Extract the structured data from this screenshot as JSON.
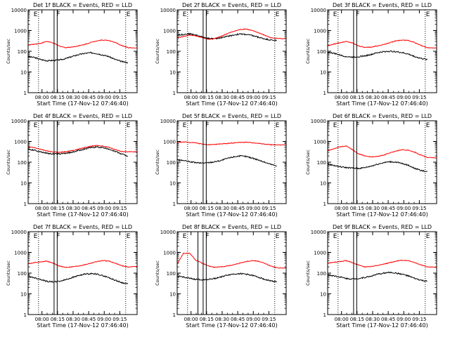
{
  "figure": {
    "xlabel": "Start Time (17-Nov-12 07:46:40)",
    "ylabel": "Counts/sec",
    "x_tick_labels": [
      "08:00",
      "08:15",
      "08:30",
      "08:45",
      "09:00",
      "09:15"
    ],
    "y_tick_labels": [
      "1",
      "10",
      "100",
      "1000",
      "10000"
    ],
    "flag_label_F": "F",
    "flag_label_E": "E",
    "colors": {
      "events": "#000000",
      "lld": "#ff0000",
      "axes": "#000000",
      "background": "#ffffff"
    }
  },
  "chart_data": [
    {
      "type": "line",
      "title": "Det 1f BLACK = Events, RED = LLD",
      "yscale": "log",
      "ylim": [
        1,
        10000
      ],
      "x_range_minutes": [
        0,
        105
      ],
      "series": [
        {
          "color": "#000000",
          "x": [
            0,
            6,
            12,
            18,
            24,
            30,
            36,
            42,
            48,
            54,
            60,
            66,
            72,
            78,
            84,
            90,
            96
          ],
          "y": [
            55,
            50,
            40,
            35,
            36,
            38,
            44,
            55,
            68,
            78,
            85,
            78,
            66,
            55,
            40,
            32,
            28
          ]
        },
        {
          "color": "#ff0000",
          "x": [
            0,
            6,
            12,
            18,
            24,
            30,
            36,
            42,
            48,
            54,
            60,
            66,
            72,
            78,
            84,
            90,
            96,
            105
          ],
          "y": [
            200,
            220,
            240,
            300,
            250,
            180,
            150,
            160,
            180,
            210,
            260,
            320,
            350,
            330,
            260,
            190,
            150,
            145
          ]
        }
      ],
      "vlines_solid": [
        25,
        28
      ],
      "vlines_dotted": [
        10,
        94
      ],
      "flags": {
        "F": 28,
        "E": 94
      }
    },
    {
      "type": "line",
      "title": "Det 2f BLACK = Events, RED = LLD",
      "yscale": "log",
      "ylim": [
        1,
        10000
      ],
      "x_range_minutes": [
        0,
        105
      ],
      "series": [
        {
          "color": "#000000",
          "x": [
            0,
            6,
            12,
            18,
            24,
            30,
            36,
            42,
            48,
            54,
            60,
            66,
            72,
            78,
            84,
            90,
            96
          ],
          "y": [
            600,
            650,
            700,
            600,
            500,
            420,
            400,
            450,
            520,
            600,
            680,
            650,
            580,
            480,
            400,
            350,
            330
          ]
        },
        {
          "color": "#ff0000",
          "x": [
            0,
            6,
            12,
            18,
            24,
            30,
            36,
            42,
            48,
            54,
            60,
            66,
            72,
            78,
            84,
            90,
            96,
            105
          ],
          "y": [
            450,
            520,
            600,
            560,
            450,
            380,
            400,
            520,
            700,
            900,
            1100,
            1200,
            1000,
            800,
            600,
            450,
            420,
            400
          ]
        }
      ],
      "vlines_solid": [
        25,
        28
      ],
      "vlines_dotted": [
        10,
        94
      ],
      "flags": {
        "F": 28,
        "E": 94
      }
    },
    {
      "type": "line",
      "title": "Det 3f BLACK = Events, RED = LLD",
      "yscale": "log",
      "ylim": [
        1,
        10000
      ],
      "x_range_minutes": [
        0,
        105
      ],
      "series": [
        {
          "color": "#000000",
          "x": [
            0,
            6,
            12,
            18,
            24,
            30,
            36,
            42,
            48,
            54,
            60,
            66,
            72,
            78,
            84,
            90,
            96
          ],
          "y": [
            90,
            80,
            65,
            55,
            52,
            55,
            60,
            70,
            85,
            95,
            100,
            95,
            85,
            72,
            55,
            45,
            40
          ]
        },
        {
          "color": "#ff0000",
          "x": [
            0,
            6,
            12,
            18,
            24,
            30,
            36,
            42,
            48,
            54,
            60,
            66,
            72,
            78,
            84,
            90,
            96,
            105
          ],
          "y": [
            180,
            220,
            260,
            300,
            250,
            180,
            150,
            160,
            180,
            210,
            260,
            320,
            350,
            330,
            260,
            190,
            150,
            145
          ]
        }
      ],
      "vlines_solid": [
        25,
        28
      ],
      "vlines_dotted": [
        10,
        94
      ],
      "flags": {
        "F": 28,
        "E": 94
      }
    },
    {
      "type": "line",
      "title": "Det 4f BLACK = Events, RED = LLD",
      "yscale": "log",
      "ylim": [
        1,
        10000
      ],
      "x_range_minutes": [
        0,
        105
      ],
      "series": [
        {
          "color": "#000000",
          "x": [
            0,
            6,
            12,
            18,
            24,
            30,
            36,
            42,
            48,
            54,
            60,
            66,
            72,
            78,
            84,
            90,
            96
          ],
          "y": [
            420,
            380,
            320,
            270,
            250,
            250,
            270,
            300,
            360,
            430,
            500,
            540,
            500,
            430,
            330,
            250,
            200
          ]
        },
        {
          "color": "#ff0000",
          "x": [
            0,
            6,
            12,
            18,
            24,
            30,
            36,
            42,
            48,
            54,
            60,
            66,
            72,
            78,
            84,
            90,
            96,
            105
          ],
          "y": [
            550,
            500,
            420,
            350,
            310,
            300,
            320,
            360,
            420,
            500,
            580,
            640,
            600,
            520,
            400,
            330,
            320,
            320
          ]
        }
      ],
      "vlines_solid": [
        25,
        28
      ],
      "vlines_dotted": [
        10,
        94
      ],
      "flags": {
        "F": 28,
        "E": 94
      }
    },
    {
      "type": "line",
      "title": "Det 5f BLACK = Events, RED = LLD",
      "yscale": "log",
      "ylim": [
        1,
        10000
      ],
      "x_range_minutes": [
        0,
        105
      ],
      "series": [
        {
          "color": "#000000",
          "x": [
            0,
            6,
            12,
            18,
            24,
            30,
            36,
            42,
            48,
            54,
            60,
            66,
            72,
            78,
            84,
            90,
            96
          ],
          "y": [
            130,
            120,
            105,
            95,
            90,
            95,
            105,
            120,
            150,
            180,
            200,
            190,
            160,
            130,
            100,
            80,
            65
          ]
        },
        {
          "color": "#ff0000",
          "x": [
            0,
            6,
            12,
            18,
            24,
            30,
            36,
            42,
            48,
            54,
            60,
            66,
            72,
            78,
            84,
            90,
            96,
            105
          ],
          "y": [
            900,
            950,
            900,
            850,
            750,
            700,
            720,
            760,
            800,
            850,
            900,
            920,
            880,
            820,
            750,
            700,
            680,
            680
          ]
        }
      ],
      "vlines_solid": [
        25,
        28
      ],
      "vlines_dotted": [
        10,
        94
      ],
      "flags": {
        "F": 28,
        "E": 94
      }
    },
    {
      "type": "line",
      "title": "Det 6f BLACK = Events, RED = LLD",
      "yscale": "log",
      "ylim": [
        1,
        10000
      ],
      "x_range_minutes": [
        0,
        105
      ],
      "series": [
        {
          "color": "#000000",
          "x": [
            0,
            6,
            12,
            18,
            24,
            30,
            36,
            42,
            48,
            54,
            60,
            66,
            72,
            78,
            84,
            90,
            96
          ],
          "y": [
            80,
            70,
            60,
            55,
            52,
            50,
            55,
            65,
            80,
            95,
            105,
            100,
            85,
            70,
            50,
            40,
            35
          ]
        },
        {
          "color": "#ff0000",
          "x": [
            0,
            6,
            12,
            18,
            24,
            30,
            36,
            42,
            48,
            54,
            60,
            66,
            72,
            78,
            84,
            90,
            96,
            105
          ],
          "y": [
            350,
            450,
            550,
            600,
            400,
            250,
            200,
            180,
            190,
            220,
            280,
            350,
            400,
            380,
            300,
            220,
            170,
            160
          ]
        }
      ],
      "vlines_solid": [
        25,
        28
      ],
      "vlines_dotted": [
        10,
        94
      ],
      "flags": {
        "F": 28,
        "E": 94
      }
    },
    {
      "type": "line",
      "title": "Det 7f BLACK = Events, RED = LLD",
      "yscale": "log",
      "ylim": [
        1,
        10000
      ],
      "x_range_minutes": [
        0,
        105
      ],
      "series": [
        {
          "color": "#000000",
          "x": [
            0,
            6,
            12,
            18,
            24,
            30,
            36,
            42,
            48,
            54,
            60,
            66,
            72,
            78,
            84,
            90,
            96
          ],
          "y": [
            70,
            60,
            50,
            40,
            38,
            40,
            48,
            60,
            75,
            88,
            95,
            90,
            75,
            60,
            45,
            35,
            30
          ]
        },
        {
          "color": "#ff0000",
          "x": [
            0,
            6,
            12,
            18,
            24,
            30,
            36,
            42,
            48,
            54,
            60,
            66,
            72,
            78,
            84,
            90,
            96,
            105
          ],
          "y": [
            280,
            320,
            350,
            380,
            300,
            220,
            190,
            200,
            220,
            250,
            300,
            360,
            400,
            380,
            300,
            230,
            200,
            210
          ]
        }
      ],
      "vlines_solid": [
        25,
        28
      ],
      "vlines_dotted": [
        10,
        94
      ],
      "flags": {
        "F": 28,
        "E": 94
      }
    },
    {
      "type": "line",
      "title": "Det 8f BLACK = Events, RED = LLD",
      "yscale": "log",
      "ylim": [
        1,
        10000
      ],
      "x_range_minutes": [
        0,
        105
      ],
      "series": [
        {
          "color": "#000000",
          "x": [
            0,
            6,
            12,
            18,
            24,
            30,
            36,
            42,
            48,
            54,
            60,
            66,
            72,
            78,
            84,
            90,
            96
          ],
          "y": [
            70,
            65,
            55,
            50,
            48,
            50,
            55,
            65,
            80,
            90,
            95,
            90,
            78,
            65,
            50,
            42,
            38
          ]
        },
        {
          "color": "#ff0000",
          "x": [
            0,
            6,
            12,
            18,
            24,
            30,
            36,
            42,
            48,
            54,
            60,
            66,
            72,
            78,
            84,
            90,
            96,
            105
          ],
          "y": [
            280,
            900,
            900,
            420,
            300,
            220,
            190,
            200,
            220,
            250,
            300,
            360,
            400,
            380,
            300,
            220,
            180,
            170
          ]
        }
      ],
      "vlines_solid": [
        20,
        25,
        28
      ],
      "vlines_dotted": [
        10,
        94
      ],
      "flags": {
        "F": 28,
        "E": 94
      }
    },
    {
      "type": "line",
      "title": "Det 9f BLACK = Events, RED = LLD",
      "yscale": "log",
      "ylim": [
        1,
        10000
      ],
      "x_range_minutes": [
        0,
        105
      ],
      "series": [
        {
          "color": "#000000",
          "x": [
            0,
            6,
            12,
            18,
            24,
            30,
            36,
            42,
            48,
            54,
            60,
            66,
            72,
            78,
            84,
            90,
            96
          ],
          "y": [
            80,
            75,
            65,
            55,
            52,
            55,
            62,
            72,
            88,
            100,
            108,
            100,
            88,
            72,
            55,
            45,
            40
          ]
        },
        {
          "color": "#ff0000",
          "x": [
            0,
            6,
            12,
            18,
            24,
            30,
            36,
            42,
            48,
            54,
            60,
            66,
            72,
            78,
            84,
            90,
            96,
            105
          ],
          "y": [
            300,
            330,
            360,
            400,
            320,
            240,
            200,
            210,
            230,
            270,
            320,
            380,
            420,
            400,
            320,
            250,
            200,
            190
          ]
        }
      ],
      "vlines_solid": [
        25,
        28
      ],
      "vlines_dotted": [
        10,
        94
      ],
      "flags": {
        "F": 28,
        "E": 94
      }
    }
  ]
}
